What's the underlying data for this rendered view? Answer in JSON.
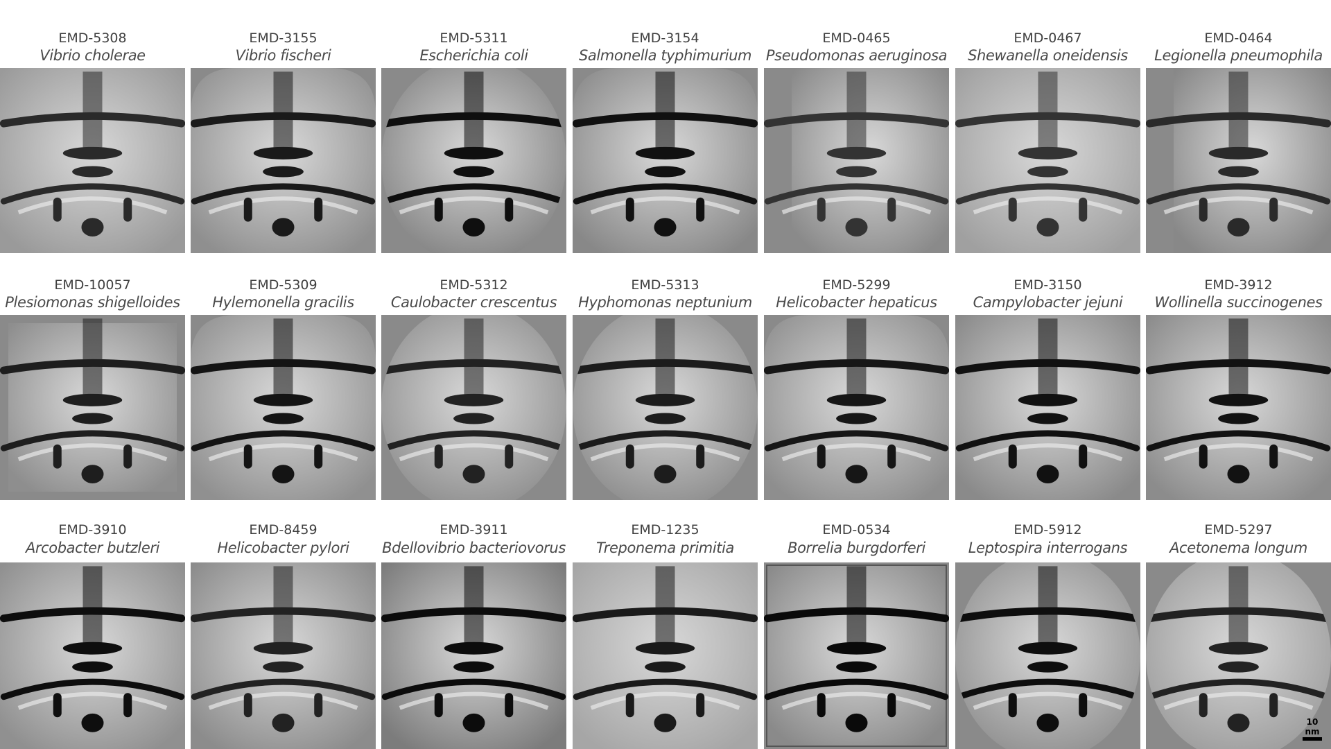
{
  "panels": [
    {
      "emd": "EMD-5308",
      "species": "Vibrio cholerae",
      "style": "full",
      "bg": "#9a9a9a",
      "dark": "#2a2a2a"
    },
    {
      "emd": "EMD-3155",
      "species": "Vibrio fischeri",
      "style": "cap",
      "bg": "#8f8f8f",
      "dark": "#1a1a1a"
    },
    {
      "emd": "EMD-5311",
      "species": "Escherichia coli",
      "style": "round",
      "bg": "#808080",
      "dark": "#0f0f0f"
    },
    {
      "emd": "EMD-3154",
      "species": "Salmonella typhimurium",
      "style": "cap",
      "bg": "#888888",
      "dark": "#111111"
    },
    {
      "emd": "EMD-0465",
      "species": "Pseudomonas aeruginosa",
      "style": "boxed",
      "bg": "#8a8a8a",
      "dark": "#333333"
    },
    {
      "emd": "EMD-0467",
      "species": "Shewanella oneidensis",
      "style": "full",
      "bg": "#a0a0a0",
      "dark": "#333333"
    },
    {
      "emd": "EMD-0464",
      "species": "Legionella pneumophila",
      "style": "boxed",
      "bg": "#888888",
      "dark": "#2a2a2a"
    },
    {
      "emd": "EMD-10057",
      "species": "Plesiomonas shigelloides",
      "style": "inset",
      "bg": "#8e8e8e",
      "dark": "#1e1e1e"
    },
    {
      "emd": "EMD-5309",
      "species": "Hylemonella gracilis",
      "style": "cap",
      "bg": "#909090",
      "dark": "#141414"
    },
    {
      "emd": "EMD-5312",
      "species": "Caulobacter crescentus",
      "style": "round",
      "bg": "#8c8c8c",
      "dark": "#222222"
    },
    {
      "emd": "EMD-5313",
      "species": "Hyphomonas neptunium",
      "style": "round",
      "bg": "#8a8a8a",
      "dark": "#1c1c1c"
    },
    {
      "emd": "EMD-5299",
      "species": "Helicobacter hepaticus",
      "style": "cap",
      "bg": "#8e8e8e",
      "dark": "#161616"
    },
    {
      "emd": "EMD-3150",
      "species": "Campylobacter jejuni",
      "style": "full",
      "bg": "#8a8a8a",
      "dark": "#111111"
    },
    {
      "emd": "EMD-3912",
      "species": "Wollinella succinogenes",
      "style": "full",
      "bg": "#8c8c8c",
      "dark": "#121212"
    },
    {
      "emd": "EMD-3910",
      "species": "Arcobacter butzleri",
      "style": "full",
      "bg": "#909090",
      "dark": "#0e0e0e"
    },
    {
      "emd": "EMD-8459",
      "species": "Helicobacter pylori",
      "style": "full",
      "bg": "#8c8c8c",
      "dark": "#222222"
    },
    {
      "emd": "EMD-3911",
      "species": "Bdellovibrio bacteriovorus",
      "style": "full",
      "bg": "#7c7c7c",
      "dark": "#0c0c0c"
    },
    {
      "emd": "EMD-1235",
      "species": "Treponema primitia",
      "style": "full",
      "bg": "#a6a6a6",
      "dark": "#1a1a1a"
    },
    {
      "emd": "EMD-0534",
      "species": "Borrelia burgdorferi",
      "style": "framed",
      "bg": "#8a8a8a",
      "dark": "#0a0a0a"
    },
    {
      "emd": "EMD-5912",
      "species": "Leptospira interrogans",
      "style": "round",
      "bg": "#8e8e8e",
      "dark": "#0e0e0e"
    },
    {
      "emd": "EMD-5297",
      "species": "Acetonema longum",
      "style": "round",
      "bg": "#9a9a9a",
      "dark": "#222222"
    }
  ],
  "scale_bar": {
    "label": "10 nm"
  }
}
